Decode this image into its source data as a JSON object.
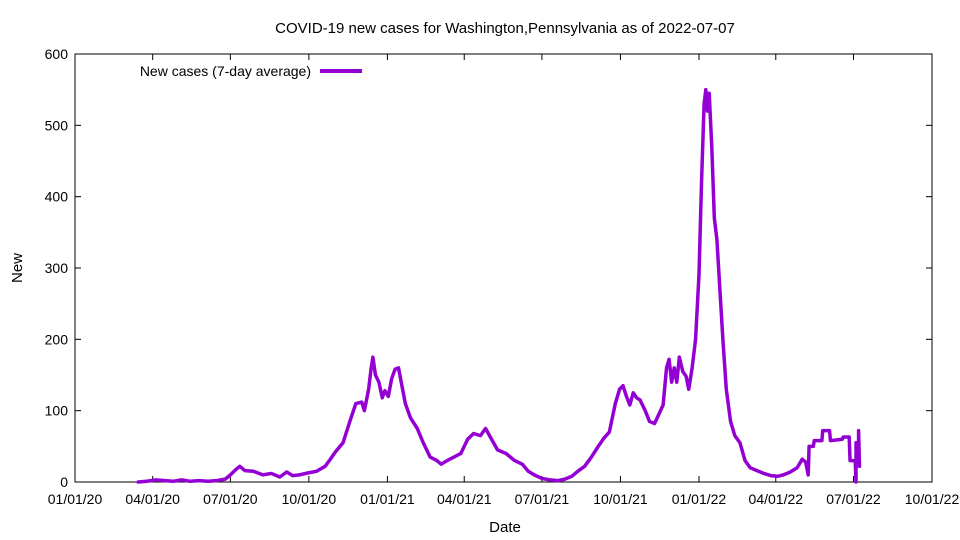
{
  "chart_data": {
    "type": "line",
    "title": "COVID-19 new cases for Washington,Pennsylvania as of 2022-07-07",
    "xlabel": "Date",
    "ylabel": "New",
    "xlim": [
      "2020-01-01",
      "2022-10-01"
    ],
    "ylim": [
      0,
      600
    ],
    "x_ticks": [
      {
        "date": "2020-01-01",
        "label": "01/01/20"
      },
      {
        "date": "2020-04-01",
        "label": "04/01/20"
      },
      {
        "date": "2020-07-01",
        "label": "07/01/20"
      },
      {
        "date": "2020-10-01",
        "label": "10/01/20"
      },
      {
        "date": "2021-01-01",
        "label": "01/01/21"
      },
      {
        "date": "2021-04-01",
        "label": "04/01/21"
      },
      {
        "date": "2021-07-01",
        "label": "07/01/21"
      },
      {
        "date": "2021-10-01",
        "label": "10/01/21"
      },
      {
        "date": "2022-01-01",
        "label": "01/01/22"
      },
      {
        "date": "2022-04-01",
        "label": "04/01/22"
      },
      {
        "date": "2022-07-01",
        "label": "07/01/22"
      },
      {
        "date": "2022-10-01",
        "label": "10/01/22"
      }
    ],
    "y_ticks": [
      0,
      100,
      200,
      300,
      400,
      500,
      600
    ],
    "grid": false,
    "legend_position": "top-left",
    "color": "#9400d3",
    "series": [
      {
        "name": "New cases (7-day average)",
        "points": [
          [
            "2020-03-15",
            0
          ],
          [
            "2020-03-25",
            1
          ],
          [
            "2020-04-05",
            3
          ],
          [
            "2020-04-15",
            2
          ],
          [
            "2020-04-25",
            1
          ],
          [
            "2020-05-05",
            3
          ],
          [
            "2020-05-15",
            1
          ],
          [
            "2020-05-25",
            2
          ],
          [
            "2020-06-05",
            1
          ],
          [
            "2020-06-15",
            2
          ],
          [
            "2020-06-25",
            4
          ],
          [
            "2020-07-01",
            10
          ],
          [
            "2020-07-08",
            18
          ],
          [
            "2020-07-12",
            22
          ],
          [
            "2020-07-18",
            16
          ],
          [
            "2020-07-28",
            15
          ],
          [
            "2020-08-08",
            10
          ],
          [
            "2020-08-18",
            12
          ],
          [
            "2020-08-28",
            7
          ],
          [
            "2020-09-05",
            14
          ],
          [
            "2020-09-12",
            9
          ],
          [
            "2020-09-20",
            10
          ],
          [
            "2020-10-01",
            13
          ],
          [
            "2020-10-10",
            15
          ],
          [
            "2020-10-20",
            22
          ],
          [
            "2020-10-25",
            30
          ],
          [
            "2020-11-01",
            42
          ],
          [
            "2020-11-10",
            55
          ],
          [
            "2020-11-18",
            85
          ],
          [
            "2020-11-25",
            110
          ],
          [
            "2020-12-02",
            112
          ],
          [
            "2020-12-05",
            100
          ],
          [
            "2020-12-10",
            130
          ],
          [
            "2020-12-13",
            160
          ],
          [
            "2020-12-15",
            175
          ],
          [
            "2020-12-18",
            150
          ],
          [
            "2020-12-22",
            140
          ],
          [
            "2020-12-26",
            118
          ],
          [
            "2020-12-29",
            128
          ],
          [
            "2021-01-02",
            120
          ],
          [
            "2021-01-06",
            145
          ],
          [
            "2021-01-10",
            158
          ],
          [
            "2021-01-14",
            160
          ],
          [
            "2021-01-18",
            135
          ],
          [
            "2021-01-22",
            110
          ],
          [
            "2021-01-28",
            90
          ],
          [
            "2021-02-05",
            75
          ],
          [
            "2021-02-12",
            55
          ],
          [
            "2021-02-20",
            35
          ],
          [
            "2021-02-28",
            30
          ],
          [
            "2021-03-05",
            25
          ],
          [
            "2021-03-12",
            30
          ],
          [
            "2021-03-20",
            35
          ],
          [
            "2021-03-28",
            40
          ],
          [
            "2021-04-05",
            60
          ],
          [
            "2021-04-12",
            68
          ],
          [
            "2021-04-20",
            65
          ],
          [
            "2021-04-26",
            75
          ],
          [
            "2021-05-02",
            62
          ],
          [
            "2021-05-10",
            45
          ],
          [
            "2021-05-20",
            40
          ],
          [
            "2021-05-30",
            30
          ],
          [
            "2021-06-08",
            25
          ],
          [
            "2021-06-15",
            15
          ],
          [
            "2021-06-22",
            10
          ],
          [
            "2021-07-01",
            5
          ],
          [
            "2021-07-10",
            3
          ],
          [
            "2021-07-20",
            2
          ],
          [
            "2021-07-28",
            4
          ],
          [
            "2021-08-05",
            8
          ],
          [
            "2021-08-12",
            15
          ],
          [
            "2021-08-20",
            22
          ],
          [
            "2021-08-28",
            35
          ],
          [
            "2021-09-05",
            50
          ],
          [
            "2021-09-12",
            62
          ],
          [
            "2021-09-18",
            70
          ],
          [
            "2021-09-25",
            110
          ],
          [
            "2021-09-30",
            130
          ],
          [
            "2021-10-04",
            135
          ],
          [
            "2021-10-08",
            120
          ],
          [
            "2021-10-12",
            108
          ],
          [
            "2021-10-16",
            125
          ],
          [
            "2021-10-20",
            118
          ],
          [
            "2021-10-24",
            115
          ],
          [
            "2021-10-30",
            100
          ],
          [
            "2021-11-04",
            85
          ],
          [
            "2021-11-10",
            82
          ],
          [
            "2021-11-15",
            95
          ],
          [
            "2021-11-20",
            108
          ],
          [
            "2021-11-24",
            160
          ],
          [
            "2021-11-27",
            172
          ],
          [
            "2021-11-30",
            140
          ],
          [
            "2021-12-03",
            160
          ],
          [
            "2021-12-06",
            140
          ],
          [
            "2021-12-09",
            175
          ],
          [
            "2021-12-13",
            155
          ],
          [
            "2021-12-17",
            148
          ],
          [
            "2021-12-20",
            130
          ],
          [
            "2021-12-24",
            160
          ],
          [
            "2021-12-28",
            200
          ],
          [
            "2022-01-01",
            290
          ],
          [
            "2022-01-04",
            420
          ],
          [
            "2022-01-07",
            530
          ],
          [
            "2022-01-09",
            550
          ],
          [
            "2022-01-11",
            520
          ],
          [
            "2022-01-13",
            545
          ],
          [
            "2022-01-16",
            470
          ],
          [
            "2022-01-19",
            370
          ],
          [
            "2022-01-22",
            340
          ],
          [
            "2022-01-25",
            280
          ],
          [
            "2022-01-29",
            200
          ],
          [
            "2022-02-02",
            130
          ],
          [
            "2022-02-07",
            85
          ],
          [
            "2022-02-12",
            65
          ],
          [
            "2022-02-18",
            55
          ],
          [
            "2022-02-24",
            30
          ],
          [
            "2022-03-02",
            20
          ],
          [
            "2022-03-10",
            16
          ],
          [
            "2022-03-18",
            12
          ],
          [
            "2022-03-26",
            9
          ],
          [
            "2022-04-03",
            8
          ],
          [
            "2022-04-10",
            10
          ],
          [
            "2022-04-18",
            14
          ],
          [
            "2022-04-26",
            20
          ],
          [
            "2022-05-02",
            32
          ],
          [
            "2022-05-06",
            28
          ],
          [
            "2022-05-09",
            10
          ],
          [
            "2022-05-10",
            50
          ],
          [
            "2022-05-15",
            50
          ],
          [
            "2022-05-16",
            58
          ],
          [
            "2022-05-25",
            58
          ],
          [
            "2022-05-26",
            72
          ],
          [
            "2022-06-03",
            72
          ],
          [
            "2022-06-04",
            58
          ],
          [
            "2022-06-18",
            60
          ],
          [
            "2022-06-19",
            63
          ],
          [
            "2022-06-26",
            63
          ],
          [
            "2022-06-27",
            30
          ],
          [
            "2022-07-03",
            30
          ],
          [
            "2022-07-04",
            0
          ],
          [
            "2022-07-04",
            55
          ],
          [
            "2022-07-07",
            55
          ],
          [
            "2022-07-07",
            72
          ],
          [
            "2022-07-08",
            22
          ]
        ]
      }
    ]
  }
}
